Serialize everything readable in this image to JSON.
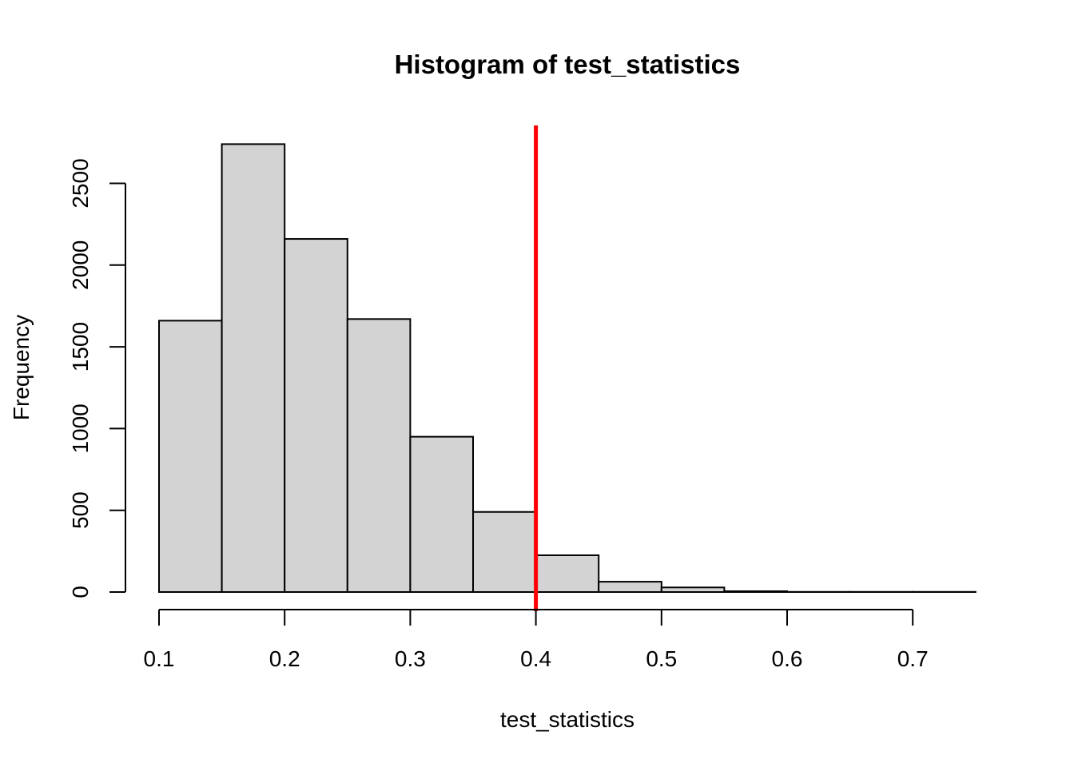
{
  "chart_data": {
    "type": "bar",
    "title": "Histogram of test_statistics",
    "xlabel": "test_statistics",
    "ylabel": "Frequency",
    "bins": [
      {
        "start": 0.1,
        "end": 0.15,
        "count": 1660
      },
      {
        "start": 0.15,
        "end": 0.2,
        "count": 2740
      },
      {
        "start": 0.2,
        "end": 0.25,
        "count": 2160
      },
      {
        "start": 0.25,
        "end": 0.3,
        "count": 1670
      },
      {
        "start": 0.3,
        "end": 0.35,
        "count": 950
      },
      {
        "start": 0.35,
        "end": 0.4,
        "count": 490
      },
      {
        "start": 0.4,
        "end": 0.45,
        "count": 225
      },
      {
        "start": 0.45,
        "end": 0.5,
        "count": 63
      },
      {
        "start": 0.5,
        "end": 0.55,
        "count": 28
      },
      {
        "start": 0.55,
        "end": 0.6,
        "count": 5
      },
      {
        "start": 0.6,
        "end": 0.65,
        "count": 1
      },
      {
        "start": 0.65,
        "end": 0.7,
        "count": 1
      },
      {
        "start": 0.7,
        "end": 0.75,
        "count": 1
      }
    ],
    "xlim": [
      0.1,
      0.75
    ],
    "ylim": [
      0,
      2740
    ],
    "x_ticks": [
      0.1,
      0.2,
      0.3,
      0.4,
      0.5,
      0.6,
      0.7
    ],
    "x_tick_labels": [
      "0.1",
      "0.2",
      "0.3",
      "0.4",
      "0.5",
      "0.6",
      "0.7"
    ],
    "y_ticks": [
      0,
      500,
      1000,
      1500,
      2000,
      2500
    ],
    "y_tick_labels": [
      "0",
      "500",
      "1000",
      "1500",
      "2000",
      "2500"
    ],
    "reference_line": {
      "x": 0.4,
      "color": "#ff0000"
    },
    "bar_fill": "#d3d3d3",
    "bar_stroke": "#000000",
    "grid": false,
    "legend": "none"
  }
}
